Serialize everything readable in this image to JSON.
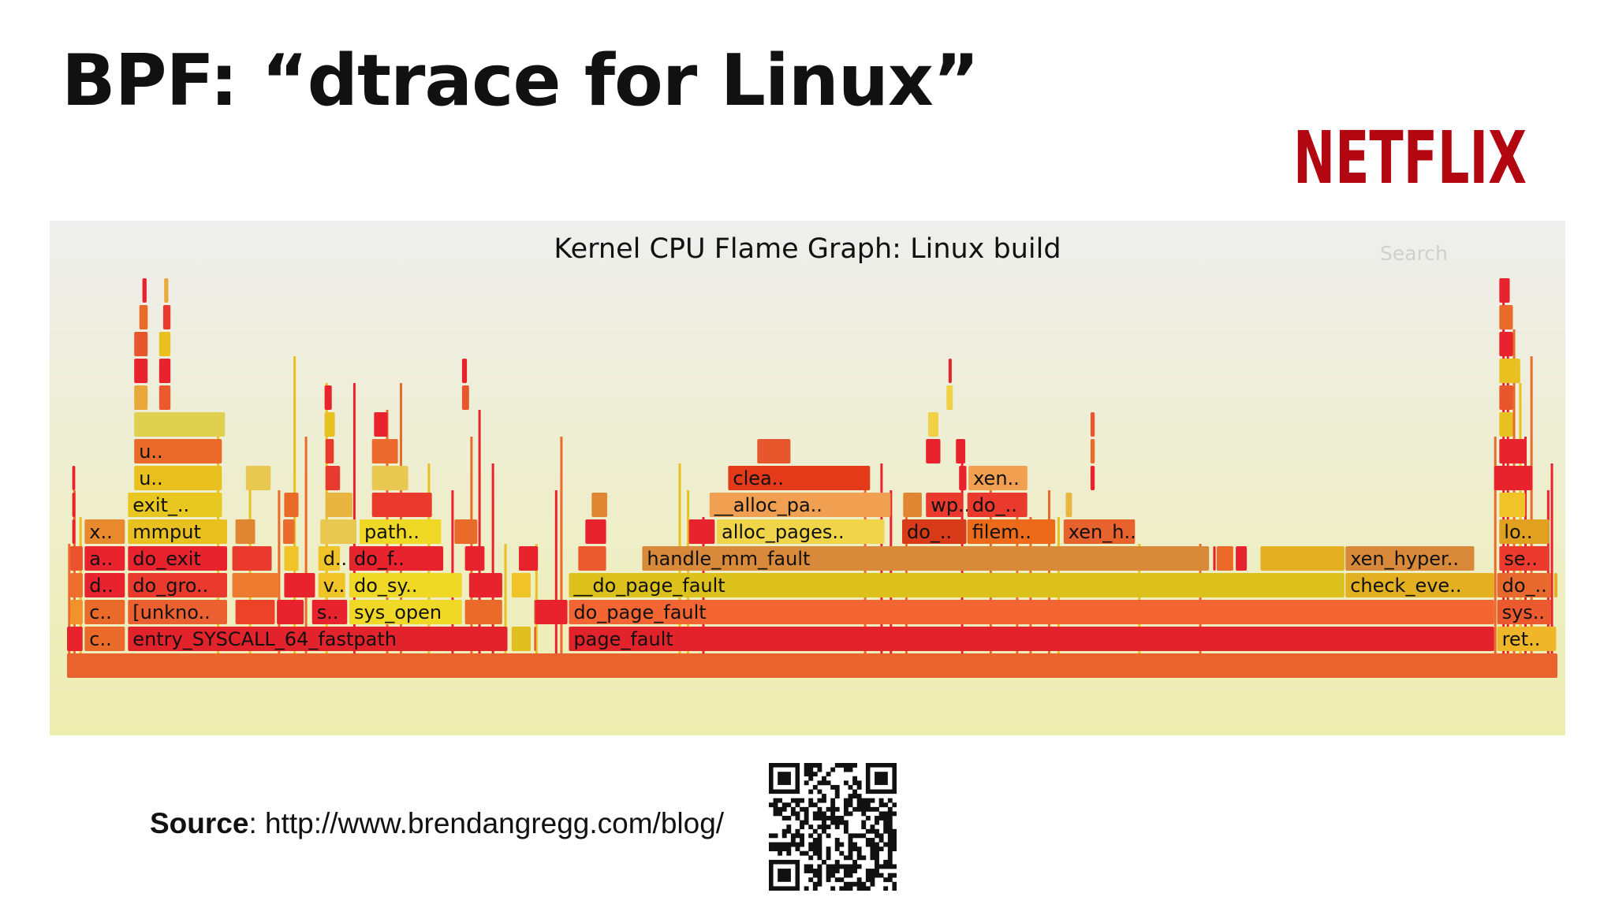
{
  "slide": {
    "title": "BPF: “dtrace for Linux”",
    "brand": "NETFLIX",
    "source_label": "Source",
    "source_url": ": http://www.brendangregg.com/blog/"
  },
  "flamegraph": {
    "title": "Kernel CPU Flame Graph: Linux build",
    "search_label": "Search",
    "colors": {
      "brand_red": "#b20710",
      "panel_top": "#eeeeee",
      "panel_bottom": "#eeeeb0"
    },
    "frames": [
      {
        "level": 0,
        "start": 0.0,
        "end": 1.0,
        "label": "",
        "color": "#e8632e"
      },
      {
        "level": 1,
        "start": 0.0,
        "end": 0.0105,
        "label": "",
        "color": "#e8232e"
      },
      {
        "level": 1,
        "start": 0.0118,
        "end": 0.0388,
        "label": "c..",
        "color": "#ea6a2a"
      },
      {
        "level": 1,
        "start": 0.0409,
        "end": 0.2955,
        "label": "entry_SYSCALL_64_fastpath",
        "color": "#e3232c"
      },
      {
        "level": 1,
        "start": 0.2983,
        "end": 0.3111,
        "label": "",
        "color": "#e0c020"
      },
      {
        "level": 1,
        "start": 0.3135,
        "end": 0.3142,
        "label": "",
        "color": "#e6432e"
      },
      {
        "level": 1,
        "start": 0.3367,
        "end": 0.9575,
        "label": "page_fault",
        "color": "#e3232c"
      },
      {
        "level": 1,
        "start": 0.9596,
        "end": 0.9992,
        "label": "ret..",
        "color": "#f0b629"
      },
      {
        "level": 2,
        "start": 0.0021,
        "end": 0.0105,
        "label": "",
        "color": "#f2922a"
      },
      {
        "level": 2,
        "start": 0.0118,
        "end": 0.0388,
        "label": "c..",
        "color": "#ea6a2a"
      },
      {
        "level": 2,
        "start": 0.0409,
        "end": 0.1074,
        "label": "[unkno..",
        "color": "#ea6030"
      },
      {
        "level": 2,
        "start": 0.113,
        "end": 0.1394,
        "label": "",
        "color": "#ec4228"
      },
      {
        "level": 2,
        "start": 0.1408,
        "end": 0.1588,
        "label": "",
        "color": "#e8232e"
      },
      {
        "level": 2,
        "start": 0.1644,
        "end": 0.188,
        "label": "s..",
        "color": "#e8232e"
      },
      {
        "level": 2,
        "start": 0.1894,
        "end": 0.2649,
        "label": "sys_open",
        "color": "#f0d827"
      },
      {
        "level": 2,
        "start": 0.267,
        "end": 0.292,
        "label": "",
        "color": "#ea6a2a"
      },
      {
        "level": 2,
        "start": 0.3135,
        "end": 0.3142,
        "label": "",
        "color": "#e6432e"
      },
      {
        "level": 2,
        "start": 0.3143,
        "end": 0.3358,
        "label": "",
        "color": "#e8232e"
      },
      {
        "level": 2,
        "start": 0.3367,
        "end": 0.9575,
        "label": "do_page_fault",
        "color": "#f36633"
      },
      {
        "level": 2,
        "start": 0.9596,
        "end": 0.9958,
        "label": "sys..",
        "color": "#ea5a2e"
      },
      {
        "level": 3,
        "start": 0.0021,
        "end": 0.0105,
        "label": "",
        "color": "#ef6d2d"
      },
      {
        "level": 3,
        "start": 0.0118,
        "end": 0.0388,
        "label": "d..",
        "color": "#e8232e"
      },
      {
        "level": 3,
        "start": 0.0409,
        "end": 0.1074,
        "label": "do_gro..",
        "color": "#ea3a2e"
      },
      {
        "level": 3,
        "start": 0.1109,
        "end": 0.1422,
        "label": "",
        "color": "#ed7a2e"
      },
      {
        "level": 3,
        "start": 0.1457,
        "end": 0.1664,
        "label": "",
        "color": "#e8232e"
      },
      {
        "level": 3,
        "start": 0.1686,
        "end": 0.1866,
        "label": "v..",
        "color": "#f0c428"
      },
      {
        "level": 3,
        "start": 0.1894,
        "end": 0.2649,
        "label": "do_sy..",
        "color": "#f0d827"
      },
      {
        "level": 3,
        "start": 0.2698,
        "end": 0.292,
        "label": "",
        "color": "#e8232e"
      },
      {
        "level": 3,
        "start": 0.2983,
        "end": 0.3111,
        "label": "",
        "color": "#f0c428"
      },
      {
        "level": 3,
        "start": 0.3367,
        "end": 0.857,
        "label": "__do_page_fault",
        "color": "#dcc11c"
      },
      {
        "level": 3,
        "start": 0.8578,
        "end": 0.9575,
        "label": "check_eve..",
        "color": "#e2b020"
      },
      {
        "level": 3,
        "start": 0.9596,
        "end": 0.9958,
        "label": "do_..",
        "color": "#e8692e"
      },
      {
        "level": 3,
        "start": 0.9978,
        "end": 1.0,
        "label": "",
        "color": "#e2b020"
      },
      {
        "level": 4,
        "start": 0.0021,
        "end": 0.0105,
        "label": "",
        "color": "#ed522e"
      },
      {
        "level": 4,
        "start": 0.0118,
        "end": 0.0388,
        "label": "a..",
        "color": "#e8232e"
      },
      {
        "level": 4,
        "start": 0.0409,
        "end": 0.1074,
        "label": "do_exit",
        "color": "#e8232e"
      },
      {
        "level": 4,
        "start": 0.1109,
        "end": 0.1373,
        "label": "",
        "color": "#ea3a2e"
      },
      {
        "level": 4,
        "start": 0.1457,
        "end": 0.1553,
        "label": "",
        "color": "#f0c428"
      },
      {
        "level": 4,
        "start": 0.1686,
        "end": 0.1831,
        "label": "d..",
        "color": "#f0c428"
      },
      {
        "level": 4,
        "start": 0.1894,
        "end": 0.2524,
        "label": "do_f..",
        "color": "#e8232e"
      },
      {
        "level": 4,
        "start": 0.267,
        "end": 0.2801,
        "label": "",
        "color": "#e8232e"
      },
      {
        "level": 4,
        "start": 0.3032,
        "end": 0.316,
        "label": "",
        "color": "#e8232e"
      },
      {
        "level": 4,
        "start": 0.343,
        "end": 0.3617,
        "label": "",
        "color": "#ea5a2e"
      },
      {
        "level": 4,
        "start": 0.3859,
        "end": 0.7662,
        "label": "handle_mm_fault",
        "color": "#d88a3a"
      },
      {
        "level": 4,
        "start": 0.769,
        "end": 0.7707,
        "label": "",
        "color": "#e8232e"
      },
      {
        "level": 4,
        "start": 0.7714,
        "end": 0.7825,
        "label": "",
        "color": "#ea6a2a"
      },
      {
        "level": 4,
        "start": 0.7842,
        "end": 0.7916,
        "label": "",
        "color": "#e8232e"
      },
      {
        "level": 4,
        "start": 0.8008,
        "end": 0.8571,
        "label": "",
        "color": "#e2b020"
      },
      {
        "level": 4,
        "start": 0.8578,
        "end": 0.9442,
        "label": "xen_hyper..",
        "color": "#d88a3a"
      },
      {
        "level": 4,
        "start": 0.961,
        "end": 0.9945,
        "label": "se..",
        "color": "#ec3a2e"
      },
      {
        "level": 5,
        "start": 0.0035,
        "end": 0.0055,
        "label": "",
        "color": "#e8232e"
      },
      {
        "level": 5,
        "start": 0.0118,
        "end": 0.0388,
        "label": "x..",
        "color": "#ea8a2e"
      },
      {
        "level": 5,
        "start": 0.0409,
        "end": 0.1074,
        "label": "mmput",
        "color": "#e8c020"
      },
      {
        "level": 5,
        "start": 0.113,
        "end": 0.1262,
        "label": "",
        "color": "#e08630"
      },
      {
        "level": 5,
        "start": 0.145,
        "end": 0.1526,
        "label": "",
        "color": "#ec6a2e"
      },
      {
        "level": 5,
        "start": 0.1699,
        "end": 0.1942,
        "label": "",
        "color": "#e8c850"
      },
      {
        "level": 5,
        "start": 0.1963,
        "end": 0.251,
        "label": "path..",
        "color": "#f0d827"
      },
      {
        "level": 5,
        "start": 0.26,
        "end": 0.2753,
        "label": "",
        "color": "#ea6a2a"
      },
      {
        "level": 5,
        "start": 0.3478,
        "end": 0.3617,
        "label": "",
        "color": "#e8232e"
      },
      {
        "level": 5,
        "start": 0.4172,
        "end": 0.4346,
        "label": "",
        "color": "#e8232e"
      },
      {
        "level": 5,
        "start": 0.436,
        "end": 0.5485,
        "label": "alloc_pages..",
        "color": "#f0d44a"
      },
      {
        "level": 5,
        "start": 0.5603,
        "end": 0.6034,
        "label": "do_..",
        "color": "#d83a1a"
      },
      {
        "level": 5,
        "start": 0.6041,
        "end": 0.6631,
        "label": "filem..",
        "color": "#ec6a1a"
      },
      {
        "level": 5,
        "start": 0.6687,
        "end": 0.7166,
        "label": "xen_h..",
        "color": "#e8622e"
      },
      {
        "level": 5,
        "start": 0.961,
        "end": 0.9945,
        "label": "lo..",
        "color": "#e2a020"
      },
      {
        "level": 6,
        "start": 0.0035,
        "end": 0.0055,
        "label": "",
        "color": "#e8232e"
      },
      {
        "level": 6,
        "start": 0.0409,
        "end": 0.1039,
        "label": "exit_..",
        "color": "#e8c820"
      },
      {
        "level": 6,
        "start": 0.1457,
        "end": 0.1553,
        "label": "",
        "color": "#ea6a2a"
      },
      {
        "level": 6,
        "start": 0.1734,
        "end": 0.1915,
        "label": "",
        "color": "#e8b640"
      },
      {
        "level": 6,
        "start": 0.2046,
        "end": 0.2448,
        "label": "",
        "color": "#ea3a2e"
      },
      {
        "level": 6,
        "start": 0.352,
        "end": 0.3624,
        "label": "",
        "color": "#e08630"
      },
      {
        "level": 6,
        "start": 0.4311,
        "end": 0.5526,
        "label": "__alloc_pa..",
        "color": "#f0a050"
      },
      {
        "level": 6,
        "start": 0.561,
        "end": 0.5735,
        "label": "",
        "color": "#e08630"
      },
      {
        "level": 6,
        "start": 0.5763,
        "end": 0.6006,
        "label": "wp..",
        "color": "#ea3a2e"
      },
      {
        "level": 6,
        "start": 0.6041,
        "end": 0.6443,
        "label": "do_..",
        "color": "#ea3a2e"
      },
      {
        "level": 6,
        "start": 0.6701,
        "end": 0.6743,
        "label": "",
        "color": "#e8b640"
      },
      {
        "level": 6,
        "start": 0.961,
        "end": 0.9784,
        "label": "",
        "color": "#f0c428"
      },
      {
        "level": 7,
        "start": 0.0035,
        "end": 0.0055,
        "label": "",
        "color": "#e8232e"
      },
      {
        "level": 7,
        "start": 0.0451,
        "end": 0.1039,
        "label": "u..",
        "color": "#e8c020"
      },
      {
        "level": 7,
        "start": 0.12,
        "end": 0.1366,
        "label": "",
        "color": "#e8c850"
      },
      {
        "level": 7,
        "start": 0.1734,
        "end": 0.1832,
        "label": "",
        "color": "#ea3a2e"
      },
      {
        "level": 7,
        "start": 0.2046,
        "end": 0.2289,
        "label": "",
        "color": "#e8c850"
      },
      {
        "level": 7,
        "start": 0.4436,
        "end": 0.5388,
        "label": "clea..",
        "color": "#e43a1a"
      },
      {
        "level": 7,
        "start": 0.5985,
        "end": 0.6034,
        "label": "",
        "color": "#e8232e"
      },
      {
        "level": 7,
        "start": 0.6048,
        "end": 0.6443,
        "label": "xen..",
        "color": "#f0a050"
      },
      {
        "level": 7,
        "start": 0.6867,
        "end": 0.6895,
        "label": "",
        "color": "#e8232e"
      },
      {
        "level": 7,
        "start": 0.9575,
        "end": 0.9832,
        "label": "",
        "color": "#e8232e"
      },
      {
        "level": 8,
        "start": 0.0451,
        "end": 0.1039,
        "label": "u..",
        "color": "#ea6a2a"
      },
      {
        "level": 8,
        "start": 0.1734,
        "end": 0.179,
        "label": "",
        "color": "#ea3a2e"
      },
      {
        "level": 8,
        "start": 0.2046,
        "end": 0.222,
        "label": "",
        "color": "#ec6a2e"
      },
      {
        "level": 8,
        "start": 0.4631,
        "end": 0.4854,
        "label": "",
        "color": "#e8562e"
      },
      {
        "level": 8,
        "start": 0.5763,
        "end": 0.586,
        "label": "",
        "color": "#e8232e"
      },
      {
        "level": 8,
        "start": 0.5964,
        "end": 0.6027,
        "label": "",
        "color": "#e8232e"
      },
      {
        "level": 8,
        "start": 0.6867,
        "end": 0.6895,
        "label": "",
        "color": "#ea6a2a"
      },
      {
        "level": 8,
        "start": 0.961,
        "end": 0.9784,
        "label": "",
        "color": "#e8232e"
      },
      {
        "level": 9,
        "start": 0.0451,
        "end": 0.106,
        "label": "",
        "color": "#e0d050"
      },
      {
        "level": 9,
        "start": 0.1728,
        "end": 0.1797,
        "label": "",
        "color": "#e8c020"
      },
      {
        "level": 9,
        "start": 0.206,
        "end": 0.2151,
        "label": "",
        "color": "#e8232e"
      },
      {
        "level": 9,
        "start": 0.5777,
        "end": 0.5846,
        "label": "",
        "color": "#f0d044"
      },
      {
        "level": 9,
        "start": 0.6867,
        "end": 0.6895,
        "label": "",
        "color": "#e8562e"
      },
      {
        "level": 9,
        "start": 0.961,
        "end": 0.9701,
        "label": "",
        "color": "#e8c020"
      },
      {
        "level": 10,
        "start": 0.0451,
        "end": 0.0541,
        "label": "",
        "color": "#e8a83a"
      },
      {
        "level": 10,
        "start": 0.0618,
        "end": 0.0694,
        "label": "",
        "color": "#ea5a2e"
      },
      {
        "level": 10,
        "start": 0.1728,
        "end": 0.1776,
        "label": "",
        "color": "#e8232e"
      },
      {
        "level": 10,
        "start": 0.265,
        "end": 0.2697,
        "label": "",
        "color": "#e8562e"
      },
      {
        "level": 10,
        "start": 0.5901,
        "end": 0.5943,
        "label": "",
        "color": "#f0d044"
      },
      {
        "level": 10,
        "start": 0.961,
        "end": 0.9701,
        "label": "",
        "color": "#e8562e"
      },
      {
        "level": 11,
        "start": 0.0451,
        "end": 0.0541,
        "label": "",
        "color": "#e8232e"
      },
      {
        "level": 11,
        "start": 0.0618,
        "end": 0.0694,
        "label": "",
        "color": "#e8232e"
      },
      {
        "level": 11,
        "start": 0.265,
        "end": 0.2683,
        "label": "",
        "color": "#e8232e"
      },
      {
        "level": 11,
        "start": 0.5915,
        "end": 0.5936,
        "label": "",
        "color": "#e8232e"
      },
      {
        "level": 11,
        "start": 0.961,
        "end": 0.975,
        "label": "",
        "color": "#e8c020"
      },
      {
        "level": 12,
        "start": 0.0451,
        "end": 0.0541,
        "label": "",
        "color": "#e8562e"
      },
      {
        "level": 12,
        "start": 0.0618,
        "end": 0.0694,
        "label": "",
        "color": "#e8c020"
      },
      {
        "level": 12,
        "start": 0.961,
        "end": 0.9701,
        "label": "",
        "color": "#e8232e"
      },
      {
        "level": 13,
        "start": 0.0485,
        "end": 0.0541,
        "label": "",
        "color": "#ea6a2a"
      },
      {
        "level": 13,
        "start": 0.0645,
        "end": 0.0694,
        "label": "",
        "color": "#ea3a2e"
      },
      {
        "level": 13,
        "start": 0.961,
        "end": 0.9701,
        "label": "",
        "color": "#ea6a2a"
      },
      {
        "level": 14,
        "start": 0.0506,
        "end": 0.0534,
        "label": "",
        "color": "#e8232e"
      },
      {
        "level": 14,
        "start": 0.0652,
        "end": 0.068,
        "label": "",
        "color": "#e8a83a"
      },
      {
        "level": 14,
        "start": 0.961,
        "end": 0.968,
        "label": "",
        "color": "#e8232e"
      }
    ],
    "slivers": [
      {
        "start": 0.0007,
        "top": 5
      },
      {
        "start": 0.0042,
        "top": 7
      },
      {
        "start": 0.0083,
        "top": 6
      },
      {
        "start": 0.1006,
        "top": 9
      },
      {
        "start": 0.122,
        "top": 7
      },
      {
        "start": 0.1415,
        "top": 7
      },
      {
        "start": 0.1519,
        "top": 12
      },
      {
        "start": 0.1596,
        "top": 9
      },
      {
        "start": 0.1734,
        "top": 11
      },
      {
        "start": 0.192,
        "top": 11
      },
      {
        "start": 0.214,
        "top": 10
      },
      {
        "start": 0.2233,
        "top": 11
      },
      {
        "start": 0.242,
        "top": 8
      },
      {
        "start": 0.2579,
        "top": 7
      },
      {
        "start": 0.2706,
        "top": 9
      },
      {
        "start": 0.276,
        "top": 10
      },
      {
        "start": 0.285,
        "top": 8
      },
      {
        "start": 0.2934,
        "top": 5
      },
      {
        "start": 0.3142,
        "top": 5
      },
      {
        "start": 0.3274,
        "top": 7
      },
      {
        "start": 0.3309,
        "top": 9
      },
      {
        "start": 0.4103,
        "top": 8
      },
      {
        "start": 0.4159,
        "top": 7
      },
      {
        "start": 0.4262,
        "top": 6
      },
      {
        "start": 0.5347,
        "top": 7
      },
      {
        "start": 0.5457,
        "top": 8
      },
      {
        "start": 0.552,
        "top": 7
      },
      {
        "start": 0.5624,
        "top": 6
      },
      {
        "start": 0.5998,
        "top": 8
      },
      {
        "start": 0.619,
        "top": 7
      },
      {
        "start": 0.6367,
        "top": 6
      },
      {
        "start": 0.6457,
        "top": 6
      },
      {
        "start": 0.6582,
        "top": 7
      },
      {
        "start": 0.6645,
        "top": 6
      },
      {
        "start": 0.7187,
        "top": 5
      },
      {
        "start": 0.7596,
        "top": 5
      },
      {
        "start": 0.9575,
        "top": 9
      },
      {
        "start": 0.963,
        "top": 14
      },
      {
        "start": 0.966,
        "top": 12
      },
      {
        "start": 0.9701,
        "top": 13
      },
      {
        "start": 0.9743,
        "top": 11
      },
      {
        "start": 0.9778,
        "top": 9
      },
      {
        "start": 0.9818,
        "top": 12
      },
      {
        "start": 0.993,
        "top": 7
      },
      {
        "start": 0.9955,
        "top": 8
      }
    ]
  }
}
